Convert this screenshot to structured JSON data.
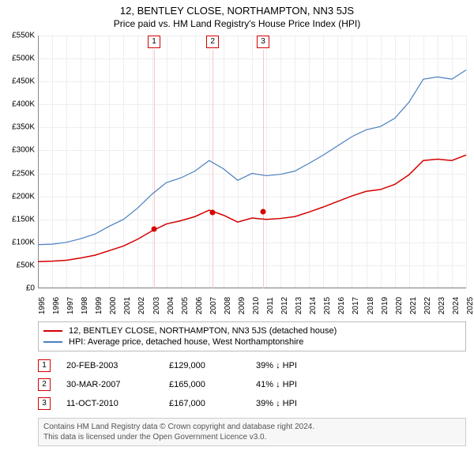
{
  "title": {
    "line1": "12, BENTLEY CLOSE, NORTHAMPTON, NN3 5JS",
    "line2": "Price paid vs. HM Land Registry's House Price Index (HPI)"
  },
  "chart": {
    "type": "line",
    "background_color": "#ffffff",
    "grid_color": "#eeeeee",
    "axis_color": "#888888",
    "x": {
      "min": 1995,
      "max": 2025,
      "ticks": [
        1995,
        1996,
        1997,
        1998,
        1999,
        2000,
        2001,
        2002,
        2003,
        2004,
        2005,
        2006,
        2007,
        2008,
        2009,
        2010,
        2011,
        2012,
        2013,
        2014,
        2015,
        2016,
        2017,
        2018,
        2019,
        2020,
        2021,
        2022,
        2023,
        2024,
        2025
      ],
      "label_fontsize": 10,
      "label_rotate_deg": -90
    },
    "y": {
      "min": 0,
      "max": 550000,
      "ticks": [
        0,
        50000,
        100000,
        150000,
        200000,
        250000,
        300000,
        350000,
        400000,
        450000,
        500000,
        550000
      ],
      "tick_labels": [
        "£0",
        "£50K",
        "£100K",
        "£150K",
        "£200K",
        "£250K",
        "£300K",
        "£350K",
        "£400K",
        "£450K",
        "£500K",
        "£550K"
      ],
      "label_fontsize": 10
    },
    "series": {
      "hpi": {
        "label": "HPI: Average price, detached house, West Northamptonshire",
        "color": "#4a7fbf",
        "line_width": 1.2,
        "data": [
          [
            1995,
            95000
          ],
          [
            1996,
            96000
          ],
          [
            1997,
            100000
          ],
          [
            1998,
            108000
          ],
          [
            1999,
            118000
          ],
          [
            2000,
            135000
          ],
          [
            2001,
            150000
          ],
          [
            2002,
            175000
          ],
          [
            2003,
            205000
          ],
          [
            2004,
            230000
          ],
          [
            2005,
            240000
          ],
          [
            2006,
            255000
          ],
          [
            2007,
            278000
          ],
          [
            2008,
            260000
          ],
          [
            2009,
            235000
          ],
          [
            2010,
            250000
          ],
          [
            2011,
            245000
          ],
          [
            2012,
            248000
          ],
          [
            2013,
            255000
          ],
          [
            2014,
            272000
          ],
          [
            2015,
            290000
          ],
          [
            2016,
            310000
          ],
          [
            2017,
            330000
          ],
          [
            2018,
            345000
          ],
          [
            2019,
            352000
          ],
          [
            2020,
            370000
          ],
          [
            2021,
            405000
          ],
          [
            2022,
            455000
          ],
          [
            2023,
            460000
          ],
          [
            2024,
            455000
          ],
          [
            2025,
            475000
          ]
        ]
      },
      "property": {
        "label": "12, BENTLEY CLOSE, NORTHAMPTON, NN3 5JS (detached house)",
        "color": "#d40000",
        "line_width": 1.5,
        "data": [
          [
            1995,
            58000
          ],
          [
            1996,
            59000
          ],
          [
            1997,
            61000
          ],
          [
            1998,
            66000
          ],
          [
            1999,
            72000
          ],
          [
            2000,
            82000
          ],
          [
            2001,
            92000
          ],
          [
            2002,
            107000
          ],
          [
            2003,
            125000
          ],
          [
            2004,
            140000
          ],
          [
            2005,
            147000
          ],
          [
            2006,
            156000
          ],
          [
            2007,
            170000
          ],
          [
            2008,
            159000
          ],
          [
            2009,
            144000
          ],
          [
            2010,
            153000
          ],
          [
            2011,
            150000
          ],
          [
            2012,
            152000
          ],
          [
            2013,
            156000
          ],
          [
            2014,
            166000
          ],
          [
            2015,
            177000
          ],
          [
            2016,
            189000
          ],
          [
            2017,
            201000
          ],
          [
            2018,
            211000
          ],
          [
            2019,
            215000
          ],
          [
            2020,
            226000
          ],
          [
            2021,
            247000
          ],
          [
            2022,
            278000
          ],
          [
            2023,
            281000
          ],
          [
            2024,
            278000
          ],
          [
            2025,
            290000
          ]
        ]
      }
    },
    "markers": [
      {
        "n": "1",
        "year": 2003.14,
        "price": 129000,
        "color": "#d40000",
        "line_color": "#f7c6c6"
      },
      {
        "n": "2",
        "year": 2007.24,
        "price": 165000,
        "color": "#d40000",
        "line_color": "#f7c6c6"
      },
      {
        "n": "3",
        "year": 2010.78,
        "price": 167000,
        "color": "#d40000",
        "line_color": "#f7c6c6"
      }
    ]
  },
  "legend": {
    "border_color": "#bbbbbb",
    "items": [
      {
        "color": "#d40000",
        "label_key": "chart.series.property.label"
      },
      {
        "color": "#4a7fbf",
        "label_key": "chart.series.hpi.label"
      }
    ]
  },
  "sales": [
    {
      "n": "1",
      "date": "20-FEB-2003",
      "price": "£129,000",
      "delta": "39% ↓ HPI",
      "badge_color": "#d40000"
    },
    {
      "n": "2",
      "date": "30-MAR-2007",
      "price": "£165,000",
      "delta": "41% ↓ HPI",
      "badge_color": "#d40000"
    },
    {
      "n": "3",
      "date": "11-OCT-2010",
      "price": "£167,000",
      "delta": "39% ↓ HPI",
      "badge_color": "#d40000"
    }
  ],
  "attribution": {
    "line1": "Contains HM Land Registry data © Crown copyright and database right 2024.",
    "line2": "This data is licensed under the Open Government Licence v3.0."
  }
}
